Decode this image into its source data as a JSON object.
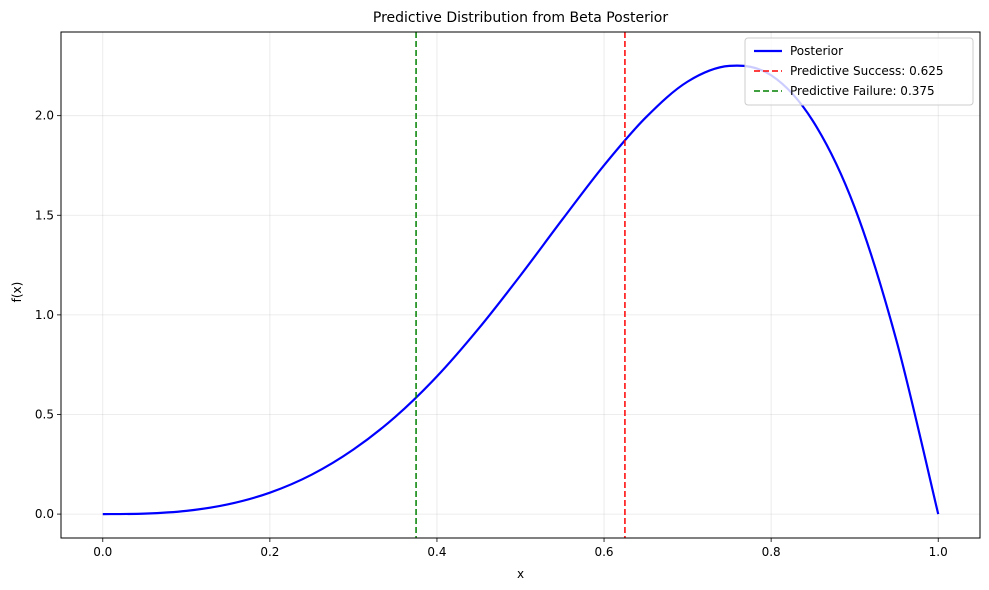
{
  "chart_data": {
    "type": "line",
    "title": "Predictive Distribution from Beta Posterior",
    "xlabel": "x",
    "ylabel": "f(x)",
    "xlim": [
      -0.05,
      1.05
    ],
    "ylim": [
      -0.12,
      2.42
    ],
    "xticks": [
      0.0,
      0.2,
      0.4,
      0.6,
      0.8,
      1.0
    ],
    "xtick_labels": [
      "0.0",
      "0.2",
      "0.4",
      "0.6",
      "0.8",
      "1.0"
    ],
    "yticks": [
      0.0,
      0.5,
      1.0,
      1.5,
      2.0
    ],
    "ytick_labels": [
      "0.0",
      "0.5",
      "1.0",
      "1.5",
      "2.0"
    ],
    "grid": true,
    "legend_position": "top-right",
    "series": [
      {
        "name": "Posterior",
        "color": "#0000ff",
        "style": "solid",
        "x": [
          0.0,
          0.05,
          0.1,
          0.15,
          0.2,
          0.25,
          0.3,
          0.35,
          0.4,
          0.45,
          0.5,
          0.55,
          0.6,
          0.65,
          0.7,
          0.75,
          0.8,
          0.85,
          0.9,
          0.95,
          1.0
        ],
        "y": [
          0.0,
          0.0024,
          0.0162,
          0.049,
          0.1075,
          0.1978,
          0.3241,
          0.4876,
          0.6912,
          0.9319,
          1.1984,
          1.4783,
          1.751,
          1.991,
          2.1709,
          2.2498,
          2.2028,
          1.9732,
          1.5394,
          0.871,
          0.0
        ]
      },
      {
        "name": "Predictive Success: 0.625",
        "color": "#ff0000",
        "style": "dashed",
        "vline": 0.625
      },
      {
        "name": "Predictive Failure: 0.375",
        "color": "#008000",
        "style": "dashed",
        "vline": 0.375
      }
    ]
  }
}
